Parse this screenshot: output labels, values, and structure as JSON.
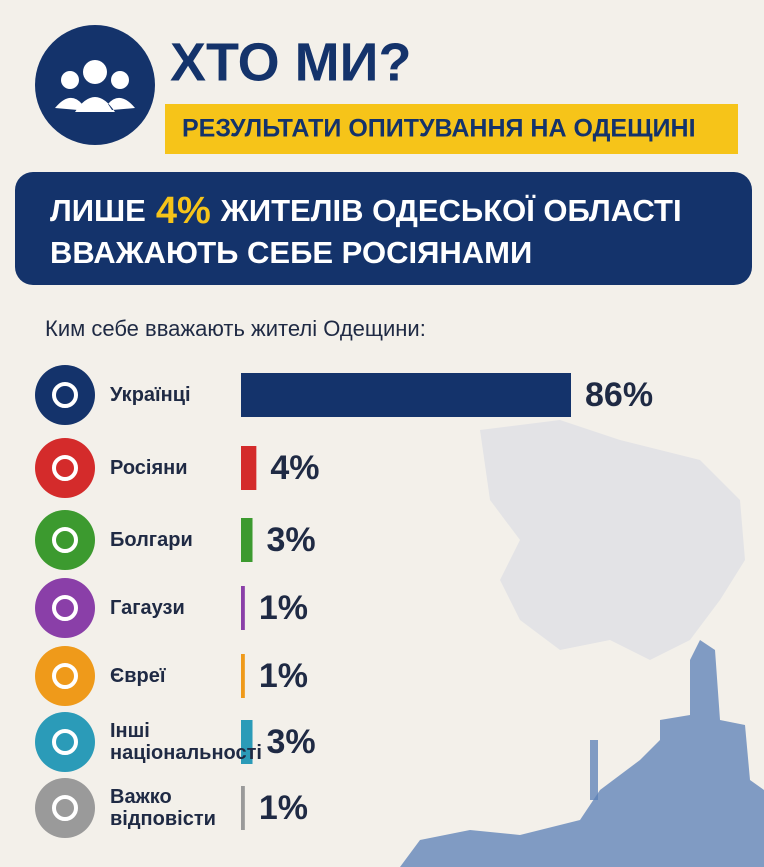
{
  "header": {
    "title": "ХТО МИ?",
    "subtitle": "РЕЗУЛЬТАТИ ОПИТУВАННЯ НА ОДЕЩИНІ"
  },
  "headline": {
    "parts": [
      "ЛИШЕ",
      "4%",
      "ЖИТЕЛІВ ОДЕСЬКОЇ ОБЛАСТІ"
    ],
    "line2": "ВВАЖАЮТЬ СЕБЕ РОСІЯНАМИ"
  },
  "chart_data": {
    "type": "bar",
    "orientation": "horizontal",
    "title": "Ким себе вважають жителі Одещини:",
    "categories": [
      "Українці",
      "Росіяни",
      "Болгари",
      "Гагаузи",
      "Євреї",
      "Інші національності",
      "Важко відповісти"
    ],
    "values": [
      86,
      4,
      3,
      1,
      1,
      3,
      1
    ],
    "value_labels": [
      "86%",
      "4%",
      "3%",
      "1%",
      "1%",
      "3%",
      "1%"
    ],
    "colors": [
      "#14336b",
      "#d42b2b",
      "#3c9a2f",
      "#8a3fa8",
      "#ef9a1a",
      "#2b9bb8",
      "#9a9a9a"
    ]
  }
}
